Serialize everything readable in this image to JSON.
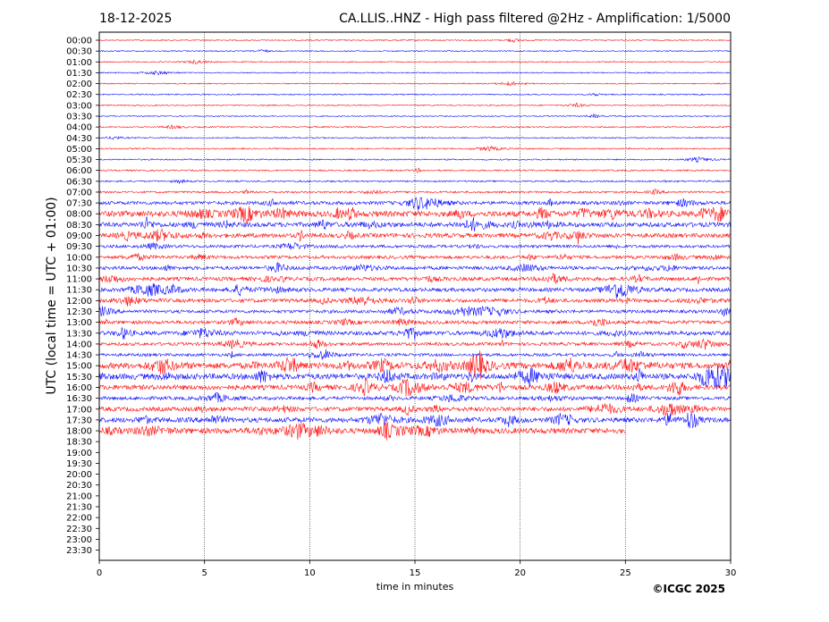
{
  "header": {
    "date": "18-12-2025",
    "title": "CA.LLIS..HNZ - High pass filtered @2Hz - Amplification: 1/5000"
  },
  "footer": {
    "copyright": "©ICGC 2025"
  },
  "colors": {
    "trace_odd": "#ff0000",
    "trace_even": "#0000ff",
    "gridline": "#000000",
    "background": "#ffffff"
  },
  "chart_data": {
    "type": "line",
    "xlabel": "time in minutes",
    "ylabel": "UTC (local time = UTC + 01:00)",
    "xlim": [
      0,
      30
    ],
    "x_ticks": [
      "0",
      "5",
      "10",
      "15",
      "20",
      "25",
      "30"
    ],
    "x_tick_values": [
      0,
      5,
      10,
      15,
      20,
      25,
      30
    ],
    "vertical_grid_minutes": [
      5,
      10,
      15,
      20,
      25
    ],
    "row_labels": [
      "00:00",
      "00:30",
      "01:00",
      "01:30",
      "02:00",
      "02:30",
      "03:00",
      "03:30",
      "04:00",
      "04:30",
      "05:00",
      "05:30",
      "06:00",
      "06:30",
      "07:00",
      "07:30",
      "08:00",
      "08:30",
      "09:00",
      "09:30",
      "10:00",
      "10:30",
      "11:00",
      "11:30",
      "12:00",
      "12:30",
      "13:00",
      "13:30",
      "14:00",
      "14:30",
      "15:00",
      "15:30",
      "16:00",
      "16:30",
      "17:00",
      "17:30",
      "18:00",
      "18:30",
      "19:00",
      "19:30",
      "20:00",
      "20:30",
      "21:00",
      "21:30",
      "22:00",
      "22:30",
      "23:00",
      "23:30"
    ],
    "recorded_until_minutes": [
      30,
      30,
      30,
      30,
      30,
      30,
      30,
      30,
      30,
      30,
      30,
      30,
      30,
      30,
      30,
      30,
      30,
      30,
      30,
      30,
      30,
      30,
      30,
      30,
      30,
      30,
      30,
      30,
      30,
      30,
      30,
      30,
      30,
      30,
      30,
      30,
      25,
      0,
      0,
      0,
      0,
      0,
      0,
      0,
      0,
      0,
      0,
      0
    ],
    "activity_level": [
      0.05,
      0.04,
      0.04,
      0.04,
      0.04,
      0.05,
      0.04,
      0.04,
      0.06,
      0.06,
      0.08,
      0.08,
      0.1,
      0.12,
      0.18,
      0.45,
      0.85,
      0.65,
      0.6,
      0.35,
      0.4,
      0.45,
      0.5,
      0.5,
      0.5,
      0.4,
      0.45,
      0.55,
      0.4,
      0.35,
      0.9,
      0.85,
      0.7,
      0.45,
      0.6,
      0.7,
      0.8,
      0,
      0,
      0,
      0,
      0,
      0,
      0,
      0,
      0,
      0,
      0
    ]
  }
}
